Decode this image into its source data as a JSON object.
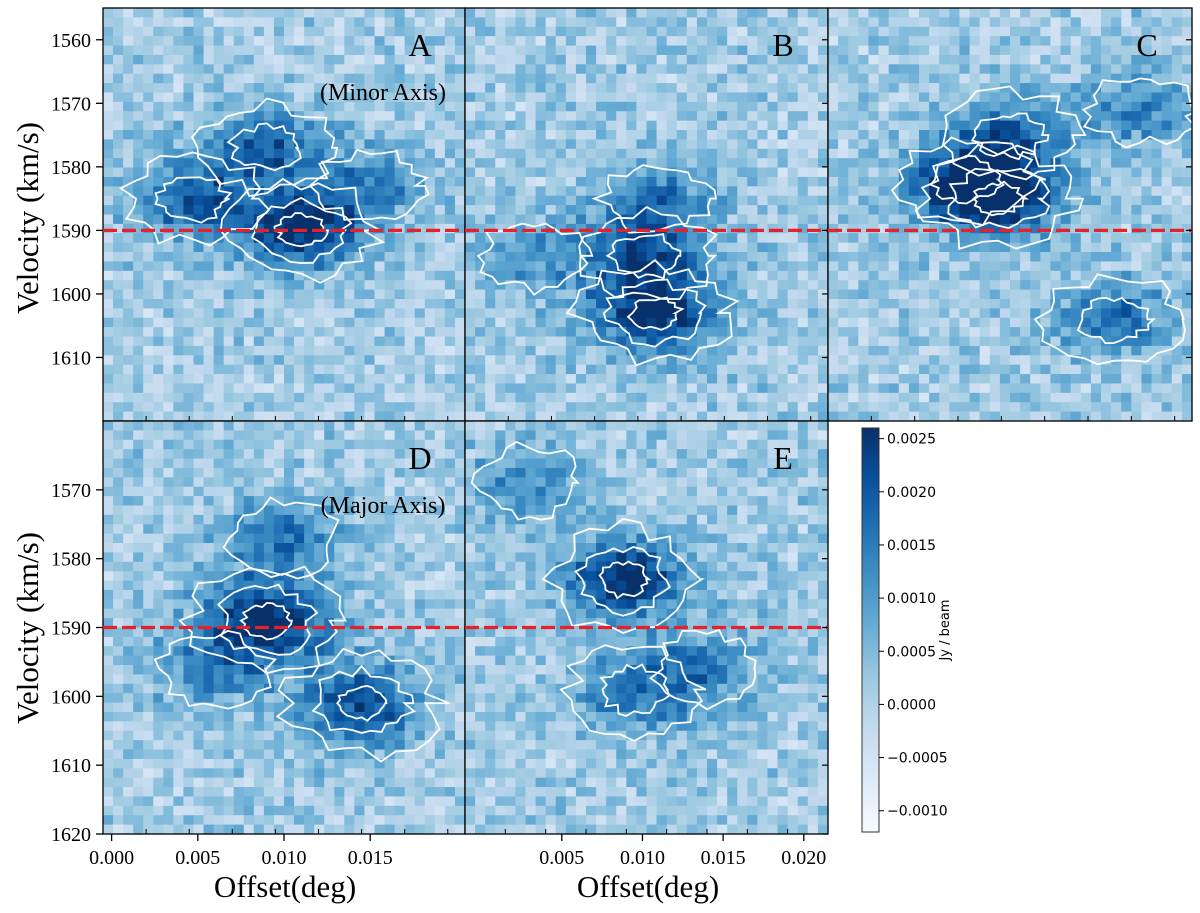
{
  "chart_data": {
    "type": "heatmap",
    "title": "",
    "ylabel": "Velocity (km/s)",
    "xlabel": "Offset(deg)",
    "vel_range": [
      1555,
      1620
    ],
    "vel_range_top_row": [
      1555,
      1620
    ],
    "vel_range_bottom_row": [
      1560,
      1620
    ],
    "reference_velocity": 1590,
    "reference_line_color": "#e8202a",
    "contour_color": "#ffffff",
    "panels": [
      {
        "id": "A",
        "label": "A",
        "sublabel": "(Minor Axis)",
        "xlim": [
          -0.001,
          0.02
        ],
        "peaks": [
          {
            "x": 0.0105,
            "v": 1590,
            "amp": 0.0026
          },
          {
            "x": 0.0042,
            "v": 1585,
            "amp": 0.0018
          },
          {
            "x": 0.0085,
            "v": 1577,
            "amp": 0.0017
          },
          {
            "x": 0.0145,
            "v": 1583,
            "amp": 0.0012
          }
        ]
      },
      {
        "id": "B",
        "label": "B",
        "sublabel": "",
        "xlim": [
          -0.001,
          0.02
        ],
        "peaks": [
          {
            "x": 0.01,
            "v": 1603,
            "amp": 0.0026
          },
          {
            "x": 0.0095,
            "v": 1594,
            "amp": 0.0018
          },
          {
            "x": 0.01,
            "v": 1585,
            "amp": 0.0014
          },
          {
            "x": 0.003,
            "v": 1594,
            "amp": 0.001
          }
        ]
      },
      {
        "id": "C",
        "label": "C",
        "sublabel": "",
        "xlim": [
          -0.001,
          0.02
        ],
        "peaks": [
          {
            "x": 0.0088,
            "v": 1585,
            "amp": 0.0026
          },
          {
            "x": 0.007,
            "v": 1582,
            "amp": 0.0019
          },
          {
            "x": 0.0095,
            "v": 1575,
            "amp": 0.0016
          },
          {
            "x": 0.017,
            "v": 1571,
            "amp": 0.0013
          },
          {
            "x": 0.0155,
            "v": 1604,
            "amp": 0.0015
          }
        ]
      },
      {
        "id": "D",
        "label": "D",
        "sublabel": "(Major Axis)",
        "xlim": [
          -0.0005,
          0.0205
        ],
        "peaks": [
          {
            "x": 0.009,
            "v": 1589,
            "amp": 0.0026
          },
          {
            "x": 0.0145,
            "v": 1601,
            "amp": 0.0021
          },
          {
            "x": 0.01,
            "v": 1577,
            "amp": 0.0014
          },
          {
            "x": 0.006,
            "v": 1596,
            "amp": 0.0012
          }
        ]
      },
      {
        "id": "E",
        "label": "E",
        "sublabel": "",
        "xlim": [
          -0.001,
          0.0215
        ],
        "peaks": [
          {
            "x": 0.0088,
            "v": 1583,
            "amp": 0.0026
          },
          {
            "x": 0.0095,
            "v": 1599,
            "amp": 0.0015
          },
          {
            "x": 0.014,
            "v": 1596,
            "amp": 0.0012
          },
          {
            "x": 0.003,
            "v": 1569,
            "amp": 0.0011
          }
        ]
      }
    ],
    "y_ticks_top": [
      "1560",
      "1570",
      "1580",
      "1590",
      "1600",
      "1610"
    ],
    "y_ticks_bottom": [
      "1570",
      "1580",
      "1590",
      "1600",
      "1610",
      "1620"
    ],
    "x_ticks_left": [
      "0.000",
      "0.005",
      "0.010",
      "0.015"
    ],
    "x_ticks_right": [
      "0.005",
      "0.010",
      "0.015",
      "0.020"
    ],
    "colorbar": {
      "label": "Jy / beam",
      "range": [
        -0.0012,
        0.0026
      ],
      "ticks": [
        "0.0025",
        "0.0020",
        "0.0015",
        "0.0010",
        "0.0005",
        "0.0000",
        "−0.0005",
        "−0.0010"
      ],
      "colors": [
        "#f7fbff",
        "#deebf7",
        "#c6dbef",
        "#9ecae1",
        "#6baed6",
        "#4292c6",
        "#2171b5",
        "#08519c",
        "#08306b"
      ]
    }
  }
}
